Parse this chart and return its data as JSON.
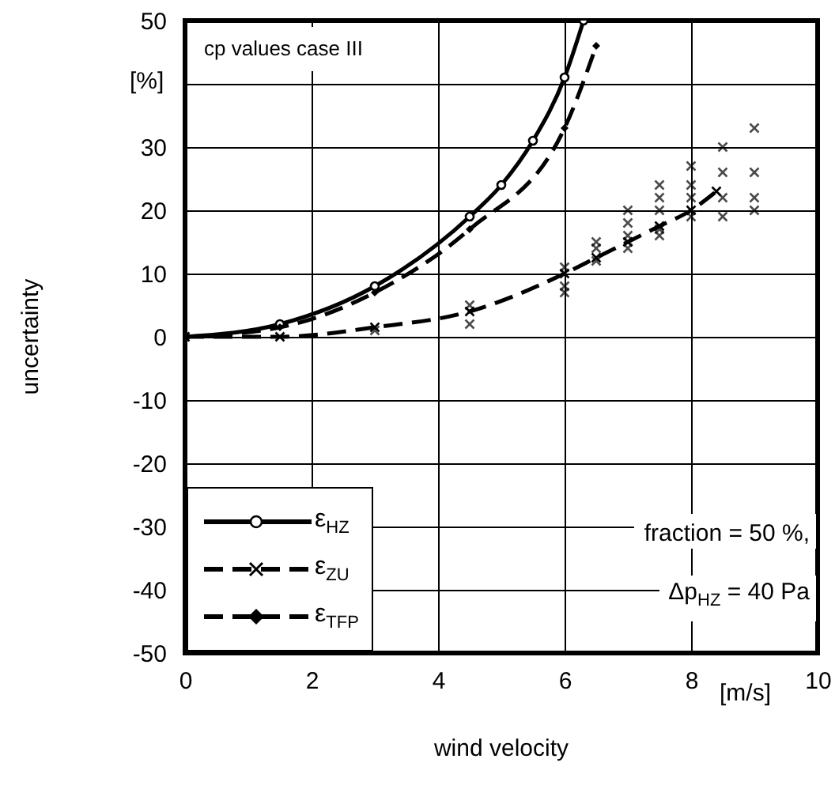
{
  "chart_data": {
    "type": "line",
    "xlabel": "wind velocity",
    "ylabel": "uncertainty",
    "annotations": [
      "cp values case III",
      "[%]",
      "[m/s]",
      "fraction = 50 %,",
      "Δp$_{HZ}$ = 40 Pa"
    ],
    "series": [
      {
        "name": "ε$_{HZ}$",
        "color": "#000000",
        "marker": "circle",
        "line_style": "solid",
        "x": [
          0,
          1.5,
          3,
          4.5,
          5,
          5.5,
          6,
          6.3
        ],
        "values": [
          0,
          2,
          8,
          19,
          24,
          31,
          41,
          50
        ]
      },
      {
        "name": "ε$_{ZU}$",
        "color": "#000000",
        "marker": "cross",
        "line_style": "dashed",
        "x": [
          0,
          1.5,
          3,
          4.5,
          6,
          6.5,
          7,
          7.5,
          8,
          8.4
        ],
        "values": [
          0,
          0,
          1.5,
          4,
          10,
          12.5,
          15,
          17.5,
          20,
          23
        ]
      },
      {
        "name": "ε$_{TFP}$",
        "color": "#000000",
        "marker": "diamond",
        "line_style": "dashed",
        "x": [
          0,
          1.5,
          3,
          4.5,
          6,
          6.5
        ],
        "values": [
          0,
          1.5,
          7,
          17,
          33,
          46
        ]
      },
      {
        "type": "scatter",
        "color": "#000000",
        "marker": "cross",
        "x": [
          3,
          4.5,
          4.5,
          6,
          6,
          6,
          6.5,
          6.5,
          6.5,
          7,
          7,
          7,
          7,
          7.5,
          7.5,
          7.5,
          7.5,
          7.5,
          8,
          8,
          8,
          8,
          8.5,
          8.5,
          8.5,
          8.5,
          9,
          9,
          9,
          9
        ],
        "values": [
          1,
          2,
          5,
          11,
          8,
          7,
          15,
          14,
          12,
          20,
          18,
          16,
          14,
          24,
          22,
          20,
          17,
          16,
          27,
          24,
          22,
          19,
          30,
          26,
          22,
          19,
          33,
          26,
          22,
          20
        ]
      }
    ],
    "xlim": [
      0,
      10
    ],
    "xticks": [
      0,
      2,
      4,
      6,
      8,
      10
    ],
    "ylim": [
      -50,
      50
    ],
    "yticks": [
      -50,
      -40,
      -30,
      -20,
      -10,
      0,
      10,
      20,
      30,
      {
        "value": 40,
        "label": null
      },
      50
    ],
    "grid": true,
    "legend": "bottom left"
  }
}
